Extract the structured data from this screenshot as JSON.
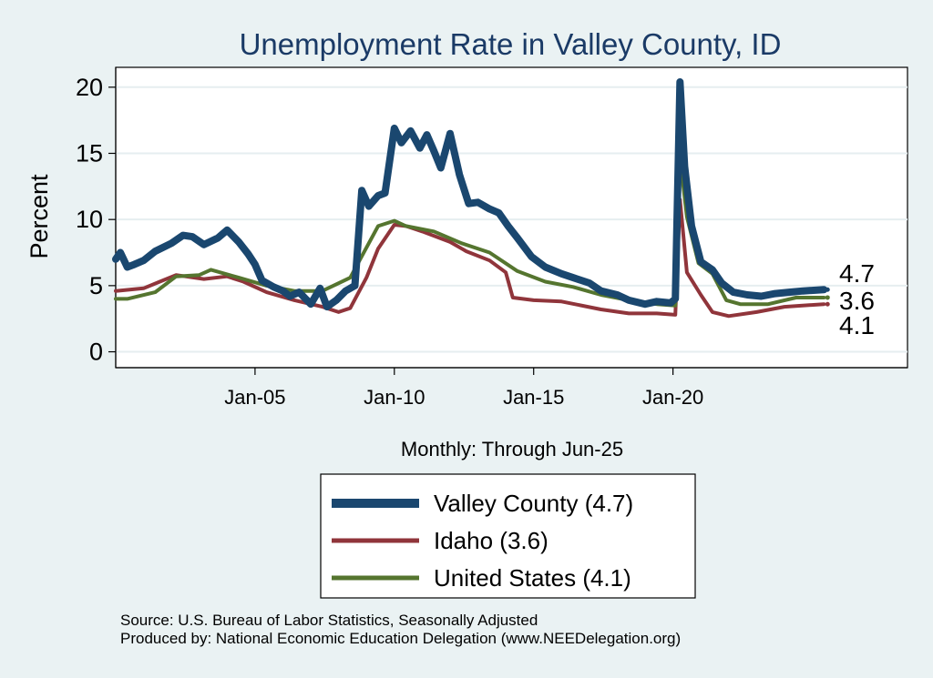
{
  "chart_data": {
    "type": "line",
    "title": "Unemployment Rate in Valley  County, ID",
    "xlabel": "Monthly: Through Jun-25",
    "ylabel": "Percent",
    "x_range": [
      "2000-01",
      "2028-06"
    ],
    "ylim": [
      -1.2,
      21.5
    ],
    "y_ticks": [
      0,
      5,
      10,
      15,
      20
    ],
    "x_ticks": [
      {
        "label": "Jan-05",
        "x": "2005-01"
      },
      {
        "label": "Jan-10",
        "x": "2010-01"
      },
      {
        "label": "Jan-15",
        "x": "2015-01"
      },
      {
        "label": "Jan-20",
        "x": "2020-01"
      }
    ],
    "grid": true,
    "legend_position": "bottom",
    "series": [
      {
        "name": "Valley  County",
        "legend_label": "Valley  County (4.7)",
        "end_label": "4.7",
        "color": "#1a476f",
        "points": [
          [
            "2000-01",
            7.0
          ],
          [
            "2000-03",
            7.5
          ],
          [
            "2000-06",
            6.4
          ],
          [
            "2000-09",
            6.6
          ],
          [
            "2001-01",
            6.9
          ],
          [
            "2001-06",
            7.6
          ],
          [
            "2002-01",
            8.2
          ],
          [
            "2002-06",
            8.8
          ],
          [
            "2002-10",
            8.7
          ],
          [
            "2003-03",
            8.1
          ],
          [
            "2003-09",
            8.6
          ],
          [
            "2004-01",
            9.2
          ],
          [
            "2004-06",
            8.3
          ],
          [
            "2004-10",
            7.4
          ],
          [
            "2005-01",
            6.6
          ],
          [
            "2005-04",
            5.4
          ],
          [
            "2005-09",
            4.9
          ],
          [
            "2006-01",
            4.6
          ],
          [
            "2006-04",
            4.2
          ],
          [
            "2006-08",
            4.5
          ],
          [
            "2007-01",
            3.6
          ],
          [
            "2007-05",
            4.8
          ],
          [
            "2007-08",
            3.4
          ],
          [
            "2007-12",
            3.9
          ],
          [
            "2008-04",
            4.6
          ],
          [
            "2008-08",
            5.0
          ],
          [
            "2008-11",
            12.2
          ],
          [
            "2009-02",
            11.0
          ],
          [
            "2009-06",
            11.8
          ],
          [
            "2009-09",
            12.0
          ],
          [
            "2010-01",
            16.9
          ],
          [
            "2010-04",
            15.8
          ],
          [
            "2010-08",
            16.7
          ],
          [
            "2010-12",
            15.4
          ],
          [
            "2011-03",
            16.4
          ],
          [
            "2011-06",
            15.2
          ],
          [
            "2011-09",
            13.9
          ],
          [
            "2012-01",
            16.5
          ],
          [
            "2012-05",
            13.4
          ],
          [
            "2012-09",
            11.2
          ],
          [
            "2013-01",
            11.3
          ],
          [
            "2013-06",
            10.8
          ],
          [
            "2013-10",
            10.5
          ],
          [
            "2014-02",
            9.5
          ],
          [
            "2014-06",
            8.6
          ],
          [
            "2014-12",
            7.2
          ],
          [
            "2015-06",
            6.4
          ],
          [
            "2016-01",
            5.9
          ],
          [
            "2016-06",
            5.6
          ],
          [
            "2017-01",
            5.2
          ],
          [
            "2017-06",
            4.6
          ],
          [
            "2018-01",
            4.3
          ],
          [
            "2018-06",
            3.9
          ],
          [
            "2019-01",
            3.6
          ],
          [
            "2019-06",
            3.8
          ],
          [
            "2019-12",
            3.7
          ],
          [
            "2020-02",
            4.0
          ],
          [
            "2020-04",
            20.4
          ],
          [
            "2020-06",
            14.0
          ],
          [
            "2020-09",
            9.5
          ],
          [
            "2021-01",
            6.8
          ],
          [
            "2021-06",
            6.2
          ],
          [
            "2021-10",
            5.2
          ],
          [
            "2022-03",
            4.5
          ],
          [
            "2022-09",
            4.3
          ],
          [
            "2023-03",
            4.2
          ],
          [
            "2023-09",
            4.4
          ],
          [
            "2024-03",
            4.5
          ],
          [
            "2024-09",
            4.6
          ],
          [
            "2025-06",
            4.7
          ]
        ]
      },
      {
        "name": "Idaho",
        "legend_label": "Idaho (3.6)",
        "end_label": "3.6",
        "color": "#90353b",
        "points": [
          [
            "2000-01",
            4.6
          ],
          [
            "2001-01",
            4.8
          ],
          [
            "2001-08",
            5.3
          ],
          [
            "2002-03",
            5.8
          ],
          [
            "2003-03",
            5.5
          ],
          [
            "2004-01",
            5.7
          ],
          [
            "2004-08",
            5.3
          ],
          [
            "2005-06",
            4.5
          ],
          [
            "2006-06",
            3.9
          ],
          [
            "2007-06",
            3.4
          ],
          [
            "2008-01",
            3.0
          ],
          [
            "2008-06",
            3.3
          ],
          [
            "2009-01",
            5.6
          ],
          [
            "2009-06",
            7.8
          ],
          [
            "2010-01",
            9.6
          ],
          [
            "2010-06",
            9.5
          ],
          [
            "2011-01",
            9.1
          ],
          [
            "2012-01",
            8.3
          ],
          [
            "2012-08",
            7.6
          ],
          [
            "2013-06",
            6.9
          ],
          [
            "2014-01",
            6.0
          ],
          [
            "2014-04",
            4.1
          ],
          [
            "2015-01",
            3.9
          ],
          [
            "2016-01",
            3.8
          ],
          [
            "2017-06",
            3.2
          ],
          [
            "2018-06",
            2.9
          ],
          [
            "2019-06",
            2.9
          ],
          [
            "2020-02",
            2.8
          ],
          [
            "2020-04",
            11.5
          ],
          [
            "2020-07",
            6.0
          ],
          [
            "2021-01",
            4.3
          ],
          [
            "2021-06",
            3.0
          ],
          [
            "2022-01",
            2.7
          ],
          [
            "2023-01",
            3.0
          ],
          [
            "2024-01",
            3.4
          ],
          [
            "2025-06",
            3.6
          ]
        ]
      },
      {
        "name": "United States",
        "legend_label": "United States (4.1)",
        "end_label": "4.1",
        "color": "#55752f",
        "points": [
          [
            "2000-01",
            4.0
          ],
          [
            "2000-06",
            4.0
          ],
          [
            "2001-06",
            4.5
          ],
          [
            "2002-03",
            5.7
          ],
          [
            "2003-01",
            5.8
          ],
          [
            "2003-06",
            6.2
          ],
          [
            "2004-06",
            5.6
          ],
          [
            "2005-06",
            5.0
          ],
          [
            "2006-06",
            4.6
          ],
          [
            "2007-06",
            4.6
          ],
          [
            "2008-06",
            5.6
          ],
          [
            "2009-06",
            9.5
          ],
          [
            "2010-01",
            9.9
          ],
          [
            "2010-06",
            9.5
          ],
          [
            "2011-06",
            9.1
          ],
          [
            "2012-06",
            8.2
          ],
          [
            "2013-06",
            7.5
          ],
          [
            "2014-06",
            6.1
          ],
          [
            "2015-06",
            5.3
          ],
          [
            "2016-06",
            4.9
          ],
          [
            "2017-06",
            4.3
          ],
          [
            "2018-06",
            3.9
          ],
          [
            "2019-06",
            3.6
          ],
          [
            "2020-02",
            3.5
          ],
          [
            "2020-04",
            14.7
          ],
          [
            "2020-07",
            10.2
          ],
          [
            "2020-12",
            6.7
          ],
          [
            "2021-06",
            5.9
          ],
          [
            "2021-12",
            3.9
          ],
          [
            "2022-06",
            3.6
          ],
          [
            "2023-06",
            3.6
          ],
          [
            "2024-06",
            4.1
          ],
          [
            "2025-06",
            4.1
          ]
        ]
      }
    ]
  },
  "footer": {
    "source": "Source: U.S. Bureau of Labor Statistics, Seasonally Adjusted",
    "produced_by": "Produced by: National Economic Education Delegation (www.NEEDelegation.org)"
  }
}
